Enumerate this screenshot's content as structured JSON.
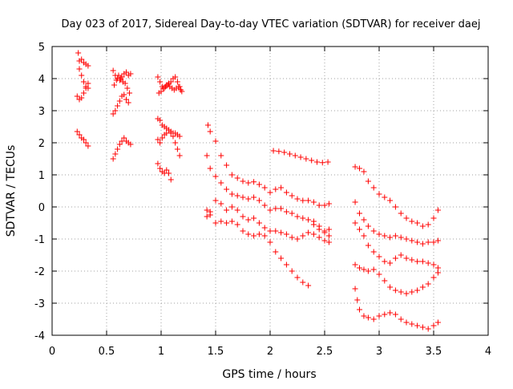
{
  "chart_data": {
    "type": "scatter",
    "title": "Day 023 of 2017, Sidereal Day-to-day VTEC variation (SDTVAR) for receiver daej",
    "xlabel": "GPS time / hours",
    "ylabel": "SDTVAR / TECUs",
    "xlim": [
      0,
      4
    ],
    "ylim": [
      -4,
      5
    ],
    "grid": true,
    "marker": "+",
    "color": "#ff0000",
    "x_ticks": [
      "0",
      "0.5",
      "1",
      "1.5",
      "2",
      "2.5",
      "3",
      "3.5",
      "4"
    ],
    "y_ticks": [
      "5",
      "4",
      "3",
      "2",
      "1",
      "0",
      "-1",
      "-2",
      "-3",
      "-4"
    ],
    "series": [
      {
        "name": "s1",
        "x": [
          0.24,
          0.25,
          0.27,
          0.29,
          0.31,
          0.33
        ],
        "y": [
          4.8,
          4.55,
          4.6,
          4.5,
          4.45,
          4.4
        ]
      },
      {
        "name": "s2",
        "x": [
          0.25,
          0.27,
          0.29,
          0.31,
          0.33
        ],
        "y": [
          4.3,
          4.1,
          3.9,
          3.75,
          3.7
        ]
      },
      {
        "name": "s3",
        "x": [
          0.23,
          0.25,
          0.27,
          0.29,
          0.31,
          0.33
        ],
        "y": [
          3.45,
          3.35,
          3.4,
          3.55,
          3.7,
          3.85
        ]
      },
      {
        "name": "s4",
        "x": [
          0.23,
          0.25,
          0.27,
          0.29,
          0.31,
          0.33
        ],
        "y": [
          2.35,
          2.25,
          2.15,
          2.1,
          2.0,
          1.9
        ]
      },
      {
        "name": "s5",
        "x": [
          0.56,
          0.58,
          0.6,
          0.62,
          0.64,
          0.66,
          0.68,
          0.7,
          0.72
        ],
        "y": [
          4.25,
          4.1,
          4.0,
          3.95,
          4.05,
          4.15,
          4.2,
          4.1,
          4.15
        ]
      },
      {
        "name": "s6",
        "x": [
          0.57,
          0.59,
          0.61,
          0.63,
          0.65,
          0.67,
          0.69,
          0.71
        ],
        "y": [
          3.8,
          3.95,
          4.1,
          4.0,
          3.9,
          3.85,
          3.7,
          3.55
        ]
      },
      {
        "name": "s7",
        "x": [
          0.56,
          0.58,
          0.6,
          0.62,
          0.64,
          0.66,
          0.68,
          0.7
        ],
        "y": [
          2.9,
          3.0,
          3.15,
          3.3,
          3.45,
          3.5,
          3.35,
          3.25
        ]
      },
      {
        "name": "s8",
        "x": [
          0.56,
          0.58,
          0.6,
          0.62,
          0.64,
          0.66,
          0.68,
          0.7,
          0.72
        ],
        "y": [
          1.5,
          1.65,
          1.8,
          1.95,
          2.05,
          2.15,
          2.05,
          2.0,
          1.95
        ]
      },
      {
        "name": "s9",
        "x": [
          0.97,
          0.99,
          1.01,
          1.03,
          1.05,
          1.07,
          1.09,
          1.11,
          1.13,
          1.15,
          1.17,
          1.19
        ],
        "y": [
          4.05,
          3.9,
          3.75,
          3.7,
          3.8,
          3.85,
          3.9,
          4.0,
          4.05,
          3.9,
          3.75,
          3.6
        ]
      },
      {
        "name": "s10",
        "x": [
          0.98,
          1.0,
          1.02,
          1.04,
          1.06,
          1.08,
          1.1,
          1.12,
          1.14,
          1.16,
          1.18
        ],
        "y": [
          3.55,
          3.6,
          3.7,
          3.75,
          3.8,
          3.75,
          3.7,
          3.65,
          3.7,
          3.75,
          3.65
        ]
      },
      {
        "name": "s11",
        "x": [
          0.97,
          0.99,
          1.01,
          1.03,
          1.05,
          1.07,
          1.09,
          1.11,
          1.13,
          1.15,
          1.17
        ],
        "y": [
          2.75,
          2.7,
          2.55,
          2.5,
          2.45,
          2.4,
          2.35,
          2.3,
          2.3,
          2.25,
          2.2
        ]
      },
      {
        "name": "s12",
        "x": [
          0.97,
          0.99,
          1.01,
          1.03,
          1.05,
          1.07,
          1.09,
          1.11,
          1.13,
          1.15,
          1.17
        ],
        "y": [
          2.1,
          2.0,
          2.15,
          2.25,
          2.3,
          2.4,
          2.3,
          2.2,
          2.0,
          1.8,
          1.6
        ]
      },
      {
        "name": "s13",
        "x": [
          0.97,
          0.99,
          1.01,
          1.03,
          1.05,
          1.07,
          1.09
        ],
        "y": [
          1.35,
          1.2,
          1.1,
          1.05,
          1.15,
          1.05,
          0.85
        ]
      },
      {
        "name": "s14",
        "x": [
          1.43,
          1.45,
          1.5,
          1.55,
          1.6,
          1.65,
          1.7,
          1.75,
          1.8,
          1.85,
          1.9,
          1.95,
          2.0,
          2.05,
          2.1,
          2.15,
          2.2,
          2.25,
          2.3,
          2.35,
          2.4,
          2.45,
          2.5,
          2.54
        ],
        "y": [
          2.55,
          2.35,
          2.05,
          1.6,
          1.3,
          1.0,
          0.9,
          0.8,
          0.75,
          0.78,
          0.7,
          0.6,
          0.45,
          0.55,
          0.6,
          0.45,
          0.35,
          0.25,
          0.2,
          0.2,
          0.15,
          0.05,
          0.05,
          0.1
        ]
      },
      {
        "name": "s15",
        "x": [
          1.42,
          1.45,
          1.5,
          1.55,
          1.6,
          1.65,
          1.7,
          1.75,
          1.8,
          1.85,
          1.9,
          1.95,
          2.0,
          2.05,
          2.1,
          2.15,
          2.2,
          2.25,
          2.3,
          2.35,
          2.4,
          2.45,
          2.5,
          2.54
        ],
        "y": [
          1.6,
          1.2,
          0.95,
          0.75,
          0.55,
          0.4,
          0.35,
          0.3,
          0.25,
          0.3,
          0.2,
          0.05,
          -0.1,
          -0.05,
          -0.05,
          -0.15,
          -0.2,
          -0.3,
          -0.35,
          -0.4,
          -0.55,
          -0.7,
          -0.75,
          -0.7
        ]
      },
      {
        "name": "s16",
        "x": [
          1.42,
          1.45,
          1.5,
          1.55,
          1.6,
          1.65,
          1.7,
          1.75,
          1.8,
          1.85,
          1.9,
          1.95,
          2.0,
          2.05,
          2.1,
          2.15,
          2.2,
          2.25,
          2.3,
          2.35,
          2.4,
          2.45,
          2.5,
          2.54
        ],
        "y": [
          -0.1,
          -0.25,
          0.2,
          0.1,
          -0.1,
          0.0,
          -0.1,
          -0.3,
          -0.4,
          -0.35,
          -0.5,
          -0.65,
          -0.75,
          -0.75,
          -0.8,
          -0.85,
          -0.95,
          -1.0,
          -0.9,
          -0.8,
          -0.85,
          -0.95,
          -1.05,
          -1.1
        ]
      },
      {
        "name": "s17",
        "x": [
          1.42,
          1.45,
          1.5,
          1.55,
          1.6,
          1.65,
          1.7,
          1.75,
          1.8,
          1.85,
          1.9,
          1.95,
          2.0,
          2.05,
          2.1,
          2.15,
          2.2,
          2.25,
          2.3,
          2.35,
          2.4,
          2.45,
          2.5,
          2.54
        ],
        "y": [
          -0.3,
          -0.15,
          -0.5,
          -0.45,
          -0.5,
          -0.45,
          -0.55,
          -0.75,
          -0.85,
          -0.9,
          -0.85,
          -0.9,
          -1.1,
          -1.4,
          -1.6,
          -1.8,
          -2.0,
          -2.2,
          -2.35,
          -2.45,
          -0.45,
          -0.6,
          -0.8,
          -0.9
        ]
      },
      {
        "name": "s18",
        "x": [
          2.03,
          2.08,
          2.13,
          2.18,
          2.23,
          2.28,
          2.33,
          2.38,
          2.43,
          2.48,
          2.53
        ],
        "y": [
          1.75,
          1.73,
          1.7,
          1.65,
          1.6,
          1.55,
          1.5,
          1.45,
          1.4,
          1.38,
          1.4
        ]
      },
      {
        "name": "s19",
        "x": [
          2.78,
          2.82,
          2.86,
          2.9,
          2.95,
          3.0,
          3.05,
          3.1,
          3.15,
          3.2,
          3.25,
          3.3,
          3.35,
          3.4,
          3.45,
          3.5,
          3.54
        ],
        "y": [
          1.25,
          1.2,
          1.1,
          0.8,
          0.6,
          0.4,
          0.3,
          0.2,
          0.0,
          -0.2,
          -0.35,
          -0.45,
          -0.5,
          -0.6,
          -0.55,
          -0.35,
          -0.1
        ]
      },
      {
        "name": "s20",
        "x": [
          2.78,
          2.82,
          2.86,
          2.9,
          2.95,
          3.0,
          3.05,
          3.1,
          3.15,
          3.2,
          3.25,
          3.3,
          3.35,
          3.4,
          3.45,
          3.5,
          3.54
        ],
        "y": [
          0.15,
          -0.2,
          -0.4,
          -0.6,
          -0.75,
          -0.85,
          -0.9,
          -0.95,
          -0.9,
          -0.95,
          -1.0,
          -1.05,
          -1.1,
          -1.15,
          -1.1,
          -1.1,
          -1.05
        ]
      },
      {
        "name": "s21",
        "x": [
          2.78,
          2.82,
          2.86,
          2.9,
          2.95,
          3.0,
          3.05,
          3.1,
          3.15,
          3.2,
          3.25,
          3.3,
          3.35,
          3.4,
          3.45,
          3.5,
          3.54
        ],
        "y": [
          -0.5,
          -0.7,
          -0.9,
          -1.2,
          -1.4,
          -1.55,
          -1.7,
          -1.75,
          -1.6,
          -1.5,
          -1.6,
          -1.65,
          -1.7,
          -1.7,
          -1.75,
          -1.8,
          -1.9
        ]
      },
      {
        "name": "s22",
        "x": [
          2.78,
          2.82,
          2.86,
          2.9,
          2.95,
          3.0,
          3.05,
          3.1,
          3.15,
          3.2,
          3.25,
          3.3,
          3.35,
          3.4,
          3.45,
          3.5,
          3.54
        ],
        "y": [
          -1.8,
          -1.9,
          -1.95,
          -2.0,
          -1.95,
          -2.1,
          -2.3,
          -2.5,
          -2.6,
          -2.65,
          -2.7,
          -2.65,
          -2.6,
          -2.5,
          -2.4,
          -2.2,
          -2.05
        ]
      },
      {
        "name": "s23",
        "x": [
          2.78,
          2.8,
          2.82,
          2.86,
          2.9,
          2.95,
          3.0,
          3.05,
          3.1,
          3.15,
          3.2,
          3.25,
          3.3,
          3.35,
          3.4,
          3.45,
          3.5,
          3.54
        ],
        "y": [
          -2.55,
          -2.9,
          -3.2,
          -3.4,
          -3.45,
          -3.5,
          -3.4,
          -3.35,
          -3.3,
          -3.35,
          -3.5,
          -3.6,
          -3.65,
          -3.7,
          -3.75,
          -3.8,
          -3.7,
          -3.6
        ]
      }
    ]
  }
}
